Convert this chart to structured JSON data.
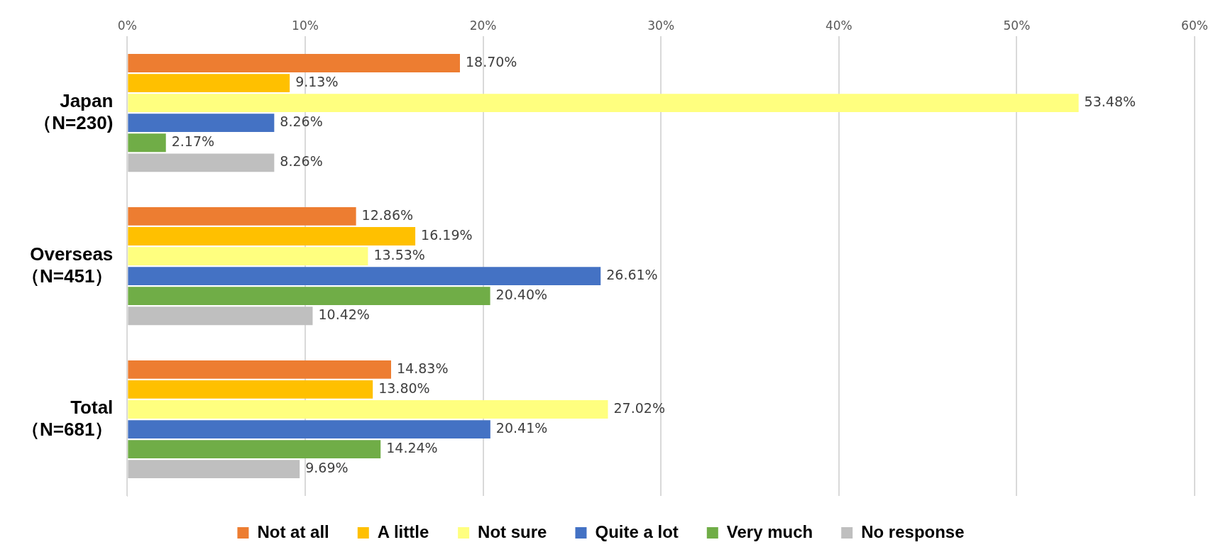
{
  "chart_data": {
    "type": "bar",
    "orientation": "horizontal",
    "categories": [
      "Japan\n（N=230)",
      "Overseas\n（N=451）",
      "Total\n（N=681）"
    ],
    "series": [
      {
        "name": "Not at all",
        "color": "#ed7d31",
        "values": [
          18.7,
          12.86,
          14.83
        ],
        "value_labels": [
          "18.70%",
          "12.86%",
          "14.83%"
        ]
      },
      {
        "name": "A little",
        "color": "#ffc000",
        "values": [
          9.13,
          16.19,
          13.8
        ],
        "value_labels": [
          "9.13%",
          "16.19%",
          "13.80%"
        ]
      },
      {
        "name": "Not sure",
        "color": "#ffff7f",
        "values": [
          53.48,
          13.53,
          27.02
        ],
        "value_labels": [
          "53.48%",
          "13.53%",
          "27.02%"
        ]
      },
      {
        "name": "Quite a lot",
        "color": "#4472c4",
        "values": [
          8.26,
          26.61,
          20.41
        ],
        "value_labels": [
          "8.26%",
          "26.61%",
          "20.41%"
        ]
      },
      {
        "name": "Very much",
        "color": "#70ad47",
        "values": [
          2.17,
          20.4,
          14.24
        ],
        "value_labels": [
          "2.17%",
          "20.40%",
          "14.24%"
        ]
      },
      {
        "name": "No response",
        "color": "#bfbfbf",
        "values": [
          8.26,
          10.42,
          9.69
        ],
        "value_labels": [
          "8.26%",
          "10.42%",
          "9.69%"
        ]
      }
    ],
    "xlim": [
      0,
      60
    ],
    "xticks": [
      {
        "value": 0,
        "label": "0%"
      },
      {
        "value": 10,
        "label": "10%"
      },
      {
        "value": 20,
        "label": "20%"
      },
      {
        "value": 30,
        "label": "30%"
      },
      {
        "value": 40,
        "label": "40%"
      },
      {
        "value": 50,
        "label": "50%"
      },
      {
        "value": 60,
        "label": "60%"
      }
    ],
    "grid": "x",
    "legend": "bottom"
  }
}
